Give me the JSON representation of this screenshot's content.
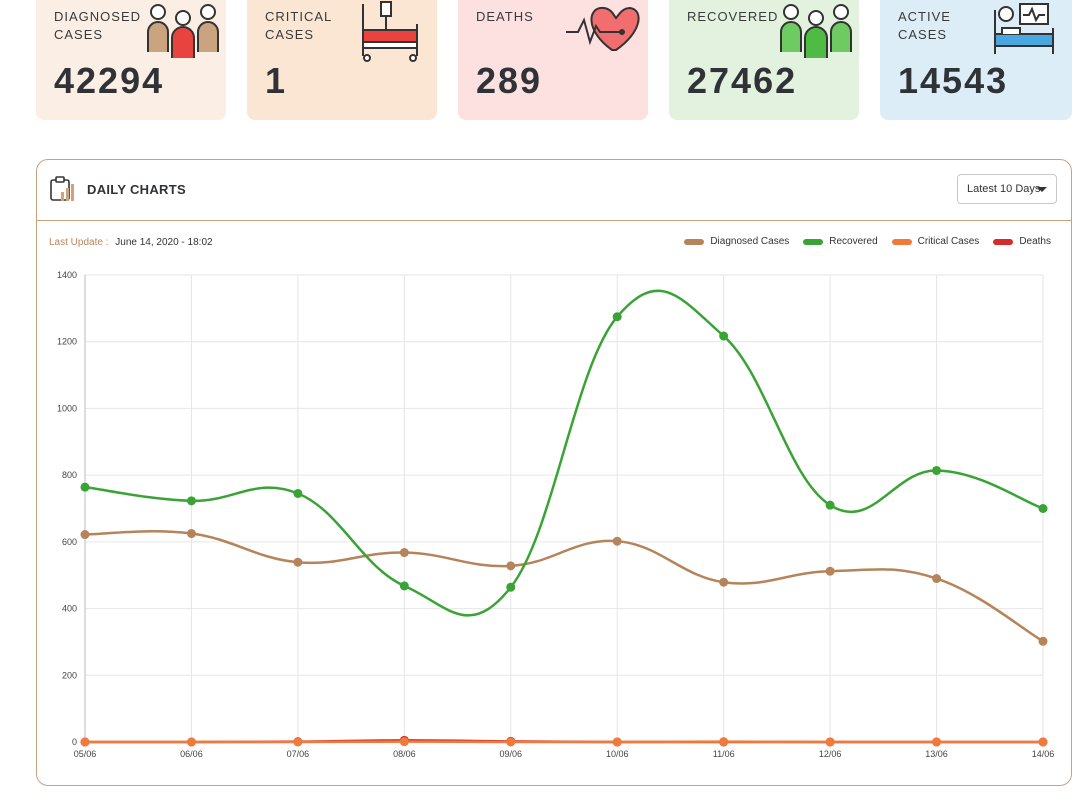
{
  "stats": [
    {
      "label": "DIAGNOSED CASES",
      "value": "42294",
      "bg": "#fbeee4",
      "icon": "people-icon"
    },
    {
      "label": "CRITICAL CASES",
      "value": "1",
      "bg": "#fbe6d3",
      "icon": "hospital-bed-icon"
    },
    {
      "label": "DEATHS",
      "value": "289",
      "bg": "#fde0e0",
      "icon": "heartbeat-icon"
    },
    {
      "label": "RECOVERED",
      "value": "27462",
      "bg": "#e3f2de",
      "icon": "people-icon"
    },
    {
      "label": "ACTIVE CASES",
      "value": "14543",
      "bg": "#dcedf7",
      "icon": "patient-monitor-icon"
    }
  ],
  "panel": {
    "title": "DAILY CHARTS",
    "range_label": "Latest 10 Days",
    "last_update_label": "Last Update :",
    "last_update_value": "June 14, 2020 - 18:02"
  },
  "chart_data": {
    "type": "line",
    "title": "DAILY CHARTS",
    "xlabel": "",
    "ylabel": "",
    "x": [
      "05/06",
      "06/06",
      "07/06",
      "08/06",
      "09/06",
      "10/06",
      "11/06",
      "12/06",
      "13/06",
      "14/06"
    ],
    "yticks": [
      0,
      200,
      400,
      600,
      800,
      1000,
      1200,
      1400
    ],
    "ylim": [
      0,
      1400
    ],
    "grid": true,
    "legend_position": "top-right",
    "series": [
      {
        "name": "Diagnosed Cases",
        "color": "#b5845a",
        "values": [
          622,
          625,
          539,
          568,
          528,
          602,
          479,
          512,
          490,
          302
        ]
      },
      {
        "name": "Recovered",
        "color": "#3aa336",
        "values": [
          764,
          723,
          745,
          468,
          464,
          1275,
          1217,
          710,
          814,
          700
        ]
      },
      {
        "name": "Critical Cases",
        "color": "#f07a3c",
        "values": [
          0,
          0,
          0,
          1,
          0,
          0,
          1,
          0,
          0,
          0
        ]
      },
      {
        "name": "Deaths",
        "color": "#d62b2b",
        "values": [
          0,
          0,
          1,
          5,
          2,
          0,
          0,
          0,
          0,
          0
        ]
      }
    ]
  }
}
